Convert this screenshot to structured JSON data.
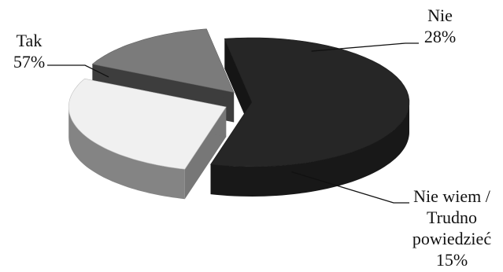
{
  "chart_data": {
    "type": "pie",
    "style": "3d-exploded",
    "title": "",
    "slices": [
      {
        "name": "Tak",
        "label": "Tak",
        "value": 57,
        "value_label": "57%",
        "color": "#262626"
      },
      {
        "name": "Nie",
        "label": "Nie",
        "value": 28,
        "value_label": "28%",
        "color": "#f0f0f0"
      },
      {
        "name": "Nie wiem / Trudno powiedzieć",
        "label_lines": [
          "Nie wiem /",
          "Trudno",
          "powiedzieć"
        ],
        "value": 15,
        "value_label": "15%",
        "color": "#7b7b7b"
      }
    ]
  }
}
